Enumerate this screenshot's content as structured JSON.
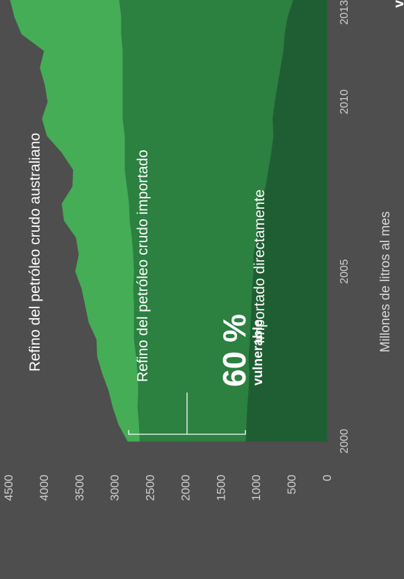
{
  "chart_data": {
    "type": "area",
    "stacked": true,
    "ylabel": "Millones de litros al mes",
    "ylim": [
      0,
      4500
    ],
    "xlim": [
      2000,
      2013
    ],
    "x_ticks": [
      "2000",
      "2005",
      "2010",
      "2013"
    ],
    "y_ticks": [
      "0",
      "500",
      "1000",
      "1500",
      "2000",
      "2500",
      "3000",
      "3500",
      "4000",
      "4500"
    ],
    "x": [
      2000,
      2000.5,
      2001,
      2001.5,
      2002,
      2002.5,
      2003,
      2003.5,
      2004,
      2004.5,
      2005,
      2005.5,
      2006,
      2006.5,
      2007,
      2007.5,
      2008,
      2008.5,
      2009,
      2009.5,
      2010,
      2010.5,
      2011,
      2011.5,
      2012,
      2012.5,
      2013
    ],
    "series": [
      {
        "name": "Refino del petróleo crudo australiano",
        "color": "#1f5e33",
        "values": [
          1150,
          1140,
          1130,
          1110,
          1100,
          1110,
          1090,
          1080,
          1070,
          1060,
          1040,
          1040,
          990,
          990,
          950,
          870,
          830,
          790,
          760,
          770,
          740,
          700,
          660,
          620,
          600,
          560,
          480
        ]
      },
      {
        "name": "Refino del petróleo crudo importado",
        "color": "#2c8040",
        "values": [
          1500,
          1520,
          1550,
          1560,
          1580,
          1590,
          1640,
          1650,
          1660,
          1680,
          1690,
          1700,
          1770,
          1800,
          1850,
          1960,
          2030,
          2070,
          2100,
          2120,
          2150,
          2190,
          2230,
          2270,
          2310,
          2350,
          2460
        ]
      },
      {
        "name": "Importado directamente",
        "color": "#44ad56",
        "values": [
          160,
          280,
          340,
          410,
          490,
          540,
          520,
          630,
          680,
          720,
          820,
          760,
          780,
          920,
          940,
          760,
          720,
          880,
          1090,
          1130,
          1050,
          1090,
          1160,
          1100,
          1400,
          1500,
          1530
        ]
      }
    ],
    "annotations": {
      "percent": "60 %",
      "label": "vulnerable",
      "corner": "v",
      "bracket_low": 1150,
      "bracket_high": 2800
    }
  }
}
